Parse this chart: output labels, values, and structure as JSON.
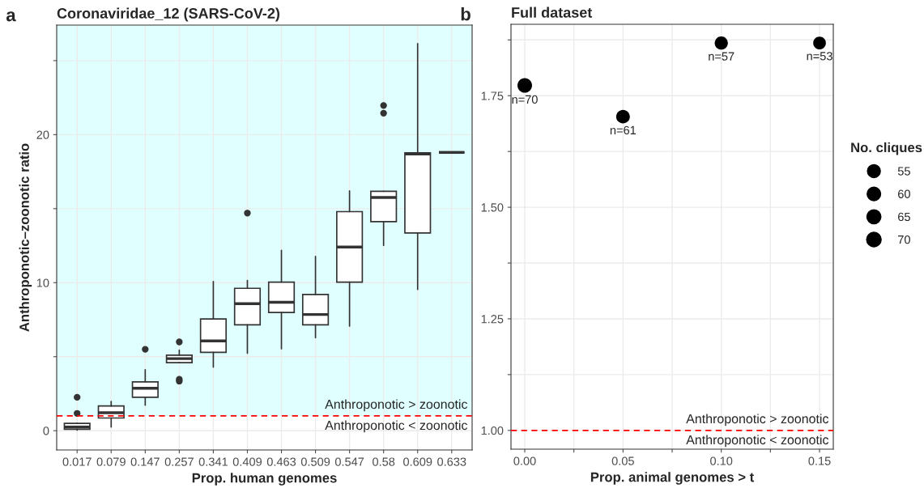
{
  "chart_data": [
    {
      "type": "box",
      "title": "Coronaviridae_12 (SARS-CoV-2)",
      "xlabel": "Prop. human genomes",
      "ylabel": "Anthroponotic–zoonotic ratio",
      "categories": [
        "0.017",
        "0.079",
        "0.147",
        "0.257",
        "0.341",
        "0.409",
        "0.463",
        "0.509",
        "0.547",
        "0.58",
        "0.609",
        "0.633"
      ],
      "boxes": [
        {
          "low": 0.04,
          "q1": 0.1,
          "median": 0.25,
          "q3": 0.5,
          "high": 0.5,
          "outliers": [
            1.17,
            2.26
          ]
        },
        {
          "low": 0.25,
          "q1": 0.86,
          "median": 1.21,
          "q3": 1.67,
          "high": 1.97
        },
        {
          "low": 1.72,
          "q1": 2.26,
          "median": 2.87,
          "q3": 3.3,
          "high": 4.12,
          "outliers": [
            5.5
          ]
        },
        {
          "low": 4.6,
          "q1": 4.6,
          "median": 4.87,
          "q3": 5.1,
          "high": 5.44,
          "outliers": [
            3.35,
            3.47,
            6.0
          ]
        },
        {
          "low": 4.29,
          "q1": 5.29,
          "median": 6.07,
          "q3": 7.55,
          "high": 10.08
        },
        {
          "low": 5.23,
          "q1": 7.15,
          "median": 8.58,
          "q3": 9.62,
          "high": 10.15,
          "outliers": [
            14.7
          ]
        },
        {
          "low": 5.54,
          "q1": 7.99,
          "median": 8.68,
          "q3": 10.04,
          "high": 12.18
        },
        {
          "low": 6.28,
          "q1": 7.15,
          "median": 7.85,
          "q3": 9.2,
          "high": 11.78
        },
        {
          "low": 7.07,
          "q1": 10.04,
          "median": 12.41,
          "q3": 14.8,
          "high": 16.2
        },
        {
          "low": 12.52,
          "q1": 14.12,
          "median": 15.76,
          "q3": 16.17,
          "high": 16.17,
          "outliers": [
            21.45,
            21.97
          ]
        },
        {
          "low": 9.54,
          "q1": 13.36,
          "median": 18.7,
          "q3": 18.77,
          "high": 26.15
        },
        {
          "low": 18.8,
          "q1": 18.8,
          "median": 18.8,
          "q3": 18.8,
          "high": 18.8
        }
      ],
      "ylim": [
        -1.3,
        27.4
      ],
      "yticks": [
        0,
        {
          "value": 5,
          "label": null
        },
        10,
        {
          "value": 15,
          "label": null
        },
        20,
        {
          "value": 25,
          "label": null
        }
      ],
      "grid": true,
      "bands": [
        {
          "axis": "y",
          "from": 1,
          "to": 27.4,
          "color": "#e0ffff"
        }
      ],
      "ref_lines": [
        {
          "axis": "y",
          "value": 1,
          "color": "#ff0000",
          "line_style": "dashed"
        }
      ],
      "annotations": [
        "a",
        {
          "text": "Anthroponotic > zoonotic",
          "y": 1
        },
        {
          "text": "Anthroponotic < zoonotic",
          "y": 1
        }
      ]
    },
    {
      "type": "bubble",
      "title": "Full dataset",
      "xlabel": "Prop. animal genomes > t",
      "legend_title": "No. cliques",
      "x": [
        0.0,
        0.05,
        0.1,
        0.15
      ],
      "series": [
        {
          "color": "#000000",
          "values": [
            1.773,
            1.703,
            1.868,
            1.868
          ],
          "sizes": [
            70,
            61,
            57,
            53
          ],
          "value_labels": [
            "n=70",
            "n=61",
            "n=57",
            "n=53"
          ]
        }
      ],
      "size_legend": [
        55,
        60,
        65,
        70
      ],
      "xlim": [
        -0.007,
        0.157
      ],
      "xticks": [
        {
          "value": 0,
          "label": "0.00"
        },
        {
          "value": 0.025,
          "label": null
        },
        {
          "value": 0.05,
          "label": "0.05"
        },
        {
          "value": 0.075,
          "label": null
        },
        {
          "value": 0.1,
          "label": "0.10"
        },
        {
          "value": 0.125,
          "label": null
        },
        {
          "value": 0.15,
          "label": "0.15"
        }
      ],
      "ylim": [
        0.958,
        1.91
      ],
      "yticks": [
        {
          "value": 1,
          "label": "1.00"
        },
        {
          "value": 1.125,
          "label": null
        },
        {
          "value": 1.25,
          "label": "1.25"
        },
        {
          "value": 1.375,
          "label": null
        },
        {
          "value": 1.5,
          "label": "1.50"
        },
        {
          "value": 1.625,
          "label": null
        },
        {
          "value": 1.75,
          "label": "1.75"
        },
        {
          "value": 1.875,
          "label": null
        }
      ],
      "grid": true,
      "ref_lines": [
        {
          "axis": "y",
          "value": 1,
          "color": "#ff0000",
          "line_style": "dashed"
        }
      ],
      "annotations": [
        "b",
        {
          "text": "Anthroponotic > zoonotic",
          "y": 1
        },
        {
          "text": "Anthroponotic < zoonotic",
          "y": 1
        }
      ]
    }
  ]
}
